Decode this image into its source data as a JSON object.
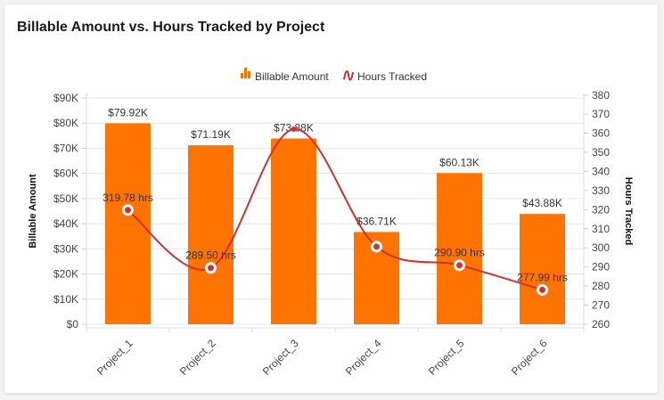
{
  "chart_data": {
    "type": "bar",
    "title": "Billable Amount vs. Hours Tracked by Project",
    "categories": [
      "Project_1",
      "Project_2",
      "Project_3",
      "Project_4",
      "Project_5",
      "Project_6"
    ],
    "series": [
      {
        "name": "Billable Amount",
        "type": "bar",
        "axis": "left",
        "color": "#ff7300",
        "values": [
          79920,
          71190,
          73880,
          36710,
          60130,
          43880
        ],
        "labels": [
          "$79.92K",
          "$71.19K",
          "$73.88K",
          "$36.71K",
          "$60.13K",
          "$43.88K"
        ]
      },
      {
        "name": "Hours Tracked",
        "type": "line",
        "smooth": true,
        "axis": "right",
        "color": "#d32f2f",
        "values": [
          319.78,
          289.5,
          362.1,
          300.6,
          290.9,
          277.99
        ],
        "labels": [
          "319.78 hrs",
          "289.50 hrs",
          "",
          "",
          "290.90 hrs",
          "277.99 hrs"
        ]
      }
    ],
    "y_left": {
      "label": "Billable Amount",
      "ylim": [
        0,
        90000
      ],
      "ticks": [
        0,
        10000,
        20000,
        30000,
        40000,
        50000,
        60000,
        70000,
        80000,
        90000
      ],
      "tick_labels": [
        "$0",
        "$10K",
        "$20K",
        "$30K",
        "$40K",
        "$50K",
        "$60K",
        "$70K",
        "$80K",
        "$90K"
      ]
    },
    "y_right": {
      "label": "Hours Tracked",
      "ylim": [
        260,
        378
      ],
      "ticks": [
        260,
        270,
        280,
        290,
        300,
        310,
        320,
        330,
        340,
        350,
        360,
        370,
        380
      ],
      "tick_labels": [
        "260",
        "270",
        "280",
        "290",
        "300",
        "310",
        "320",
        "330",
        "340",
        "350",
        "360",
        "370",
        "380"
      ]
    },
    "grid": true,
    "legend": "top-center",
    "xlabel": ""
  }
}
